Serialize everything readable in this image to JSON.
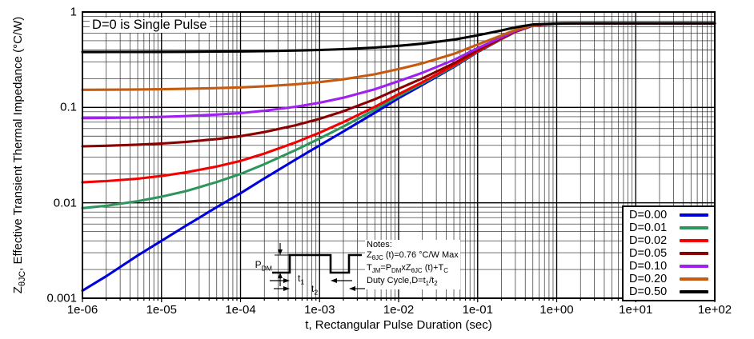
{
  "figure": {
    "annotation": "D=0 is Single Pulse",
    "xlabel": "t, Rectangular Pulse Duration (sec)",
    "ylabel_rich": [
      {
        "text": "Z"
      },
      {
        "sub": "θJC"
      },
      {
        "text": ", Effective Transient Thermal Impedance (°C/W)"
      }
    ],
    "notes": {
      "title": "Notes:",
      "lines_rich": [
        [
          {
            "text": "Z"
          },
          {
            "sub": "θJC"
          },
          {
            "text": " (t)=0.76 °C/W Max"
          }
        ],
        [
          {
            "text": "T"
          },
          {
            "sub": "JM"
          },
          {
            "text": "=P"
          },
          {
            "sub": "DM"
          },
          {
            "text": "xZ"
          },
          {
            "sub": "θJC"
          },
          {
            "text": " (t)+T"
          },
          {
            "sub": "C"
          }
        ],
        [
          {
            "text": "Duty Cycle,D=t"
          },
          {
            "sub": "1"
          },
          {
            "text": "/t"
          },
          {
            "sub": "2"
          }
        ]
      ]
    },
    "pulse_labels": {
      "pdm": [
        {
          "text": "P"
        },
        {
          "sub": "DM"
        }
      ],
      "t1": [
        {
          "text": "t"
        },
        {
          "sub": "1"
        }
      ],
      "t2": [
        {
          "text": "t"
        },
        {
          "sub": "2"
        }
      ]
    }
  },
  "chart_data": {
    "type": "line",
    "title": "",
    "xlabel": "t, Rectangular Pulse Duration (sec)",
    "ylabel": "ZθJC, Effective Transient Thermal Impedance (°C/W)",
    "x_scale": "log",
    "y_scale": "log",
    "xlim": [
      1e-06,
      100
    ],
    "ylim": [
      0.001,
      1
    ],
    "grid": "major and minor log grid, both axes",
    "legend_position": "bottom-right inside",
    "steady_state_max_cw": 0.76,
    "x_ticks": [
      {
        "value": 1e-06,
        "label": "1e-06"
      },
      {
        "value": 1e-05,
        "label": "1e-05"
      },
      {
        "value": 0.0001,
        "label": "1e-04"
      },
      {
        "value": 0.001,
        "label": "1e-03"
      },
      {
        "value": 0.01,
        "label": "1e-02"
      },
      {
        "value": 0.1,
        "label": "1e-01"
      },
      {
        "value": 1,
        "label": "1e+00"
      },
      {
        "value": 10,
        "label": "1e+01"
      },
      {
        "value": 100,
        "label": "1e+02"
      }
    ],
    "y_ticks": [
      {
        "value": 1,
        "label": "1"
      },
      {
        "value": 0.1,
        "label": "0.1"
      },
      {
        "value": 0.01,
        "label": "0.01"
      },
      {
        "value": 0.001,
        "label": "0.001"
      }
    ],
    "x": [
      1e-06,
      2e-06,
      5e-06,
      1e-05,
      2e-05,
      5e-05,
      0.0001,
      0.0002,
      0.0005,
      0.001,
      0.002,
      0.005,
      0.01,
      0.02,
      0.05,
      0.1,
      0.2,
      0.3,
      0.5,
      1,
      2,
      10,
      100
    ],
    "series": [
      {
        "name": "D=0.00",
        "color": "#0000dd",
        "values": [
          0.0012,
          0.0017,
          0.0028,
          0.004,
          0.0057,
          0.009,
          0.0126,
          0.018,
          0.0285,
          0.04,
          0.056,
          0.088,
          0.125,
          0.172,
          0.265,
          0.38,
          0.52,
          0.62,
          0.72,
          0.755,
          0.76,
          0.76,
          0.76
        ]
      },
      {
        "name": "D=0.01",
        "color": "#2e965c",
        "values": [
          0.0088,
          0.0093,
          0.0104,
          0.0116,
          0.0132,
          0.0165,
          0.0201,
          0.0254,
          0.0358,
          0.0472,
          0.063,
          0.0947,
          0.1314,
          0.1779,
          0.27,
          0.3838,
          0.5224,
          0.6214,
          0.7204,
          0.755,
          0.76,
          0.76,
          0.76
        ]
      },
      {
        "name": "D=0.02",
        "color": "#f40000",
        "values": [
          0.0164,
          0.0169,
          0.0179,
          0.0191,
          0.0208,
          0.024,
          0.0275,
          0.0328,
          0.0431,
          0.0544,
          0.0701,
          0.1014,
          0.1377,
          0.1838,
          0.2749,
          0.3876,
          0.5248,
          0.6228,
          0.7208,
          0.755,
          0.76,
          0.76,
          0.76
        ]
      },
      {
        "name": "D=0.05",
        "color": "#8b0000",
        "values": [
          0.0391,
          0.0396,
          0.0407,
          0.0418,
          0.0434,
          0.0466,
          0.05,
          0.0551,
          0.0651,
          0.076,
          0.0912,
          0.1216,
          0.1568,
          0.2014,
          0.2898,
          0.399,
          0.532,
          0.627,
          0.722,
          0.755,
          0.76,
          0.76,
          0.76
        ]
      },
      {
        "name": "D=0.10",
        "color": "#a020f0",
        "values": [
          0.0771,
          0.0775,
          0.0785,
          0.0796,
          0.0811,
          0.0841,
          0.0873,
          0.0922,
          0.1017,
          0.112,
          0.1264,
          0.1552,
          0.1885,
          0.2308,
          0.3145,
          0.418,
          0.544,
          0.634,
          0.724,
          0.7555,
          0.76,
          0.76,
          0.76
        ]
      },
      {
        "name": "D=0.20",
        "color": "#c55a11",
        "values": [
          0.153,
          0.1534,
          0.1542,
          0.1552,
          0.1566,
          0.1592,
          0.1621,
          0.1664,
          0.1748,
          0.184,
          0.1968,
          0.2224,
          0.252,
          0.2896,
          0.364,
          0.456,
          0.568,
          0.648,
          0.728,
          0.756,
          0.76,
          0.76,
          0.76
        ]
      },
      {
        "name": "D=0.50",
        "color": "#000000",
        "values": [
          0.3806,
          0.3809,
          0.3814,
          0.382,
          0.3829,
          0.3845,
          0.3863,
          0.389,
          0.3943,
          0.4,
          0.408,
          0.424,
          0.4425,
          0.466,
          0.5125,
          0.57,
          0.64,
          0.69,
          0.74,
          0.7575,
          0.76,
          0.76,
          0.76
        ]
      }
    ]
  }
}
